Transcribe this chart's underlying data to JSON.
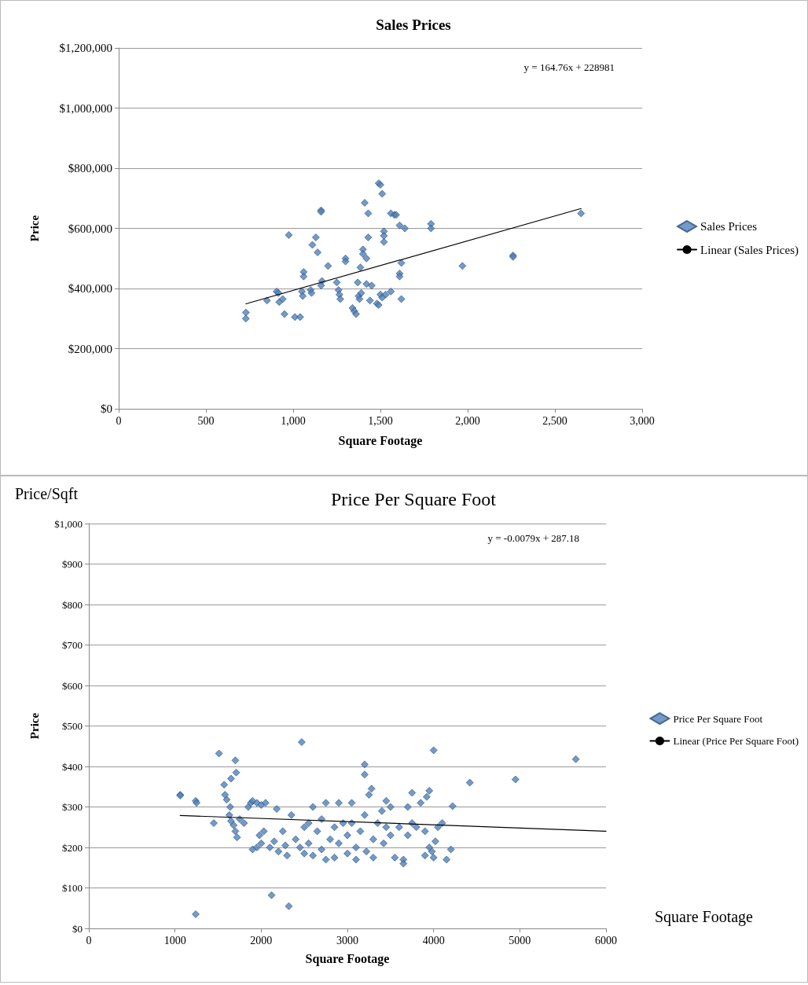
{
  "chart_data": [
    {
      "type": "scatter",
      "title": "Sales Prices",
      "xlabel": "Square Footage",
      "ylabel": "Price",
      "annotations": [
        "y = 164.76x + 228981"
      ],
      "xlim": [
        0,
        3000
      ],
      "xticks": [
        0,
        500,
        {
          "value": 1000,
          "label": "1,000"
        },
        {
          "value": 1500,
          "label": "1,500"
        },
        {
          "value": 2000,
          "label": "2,000"
        },
        {
          "value": 2500,
          "label": "2,500"
        },
        {
          "value": 3000,
          "label": "3,000"
        }
      ],
      "ylim": [
        0,
        1200000
      ],
      "yticks": [
        {
          "value": 0,
          "label": "$0"
        },
        {
          "value": 200000,
          "label": "$200,000"
        },
        {
          "value": 400000,
          "label": "$400,000"
        },
        {
          "value": 600000,
          "label": "$600,000"
        },
        {
          "value": 800000,
          "label": "$800,000"
        },
        {
          "value": 1000000,
          "label": "$1,000,000"
        },
        {
          "value": 1200000,
          "label": "$1,200,000"
        }
      ],
      "grid": "y",
      "legend": "right",
      "marker": "diamond",
      "series": [
        {
          "name": "Sales Prices",
          "color": "#4f81bd",
          "x": [
            729,
            729,
            850,
            905,
            915,
            920,
            940,
            950,
            975,
            1010,
            1040,
            1050,
            1055,
            1060,
            1060,
            1100,
            1105,
            1110,
            1130,
            1140,
            1160,
            1160,
            1165,
            1160,
            1200,
            1250,
            1260,
            1265,
            1270,
            1300,
            1300,
            1340,
            1350,
            1360,
            1370,
            1375,
            1380,
            1385,
            1390,
            1400,
            1400,
            1410,
            1420,
            1420,
            1430,
            1430,
            1440,
            1450,
            1480,
            1490,
            1490,
            1500,
            1510,
            1500,
            1510,
            1520,
            1520,
            1520,
            1530,
            1560,
            1560,
            1580,
            1590,
            1610,
            1620,
            1610,
            1610,
            1620,
            1640,
            1790,
            1790,
            1970,
            2260,
            2260,
            2650
          ],
          "values": [
            320000,
            300000,
            360000,
            390000,
            385000,
            355000,
            365000,
            315000,
            578000,
            305000,
            305000,
            390000,
            375000,
            455000,
            440000,
            395000,
            385000,
            545000,
            570000,
            520000,
            660000,
            655000,
            425000,
            410000,
            475000,
            420000,
            395000,
            380000,
            365000,
            500000,
            490000,
            335000,
            325000,
            315000,
            420000,
            375000,
            365000,
            470000,
            385000,
            530000,
            515000,
            685000,
            500000,
            415000,
            650000,
            570000,
            360000,
            410000,
            350000,
            345000,
            750000,
            745000,
            715000,
            380000,
            370000,
            590000,
            575000,
            555000,
            380000,
            390000,
            650000,
            645000,
            645000,
            610000,
            485000,
            450000,
            440000,
            365000,
            600000,
            615000,
            600000,
            475000,
            510000,
            505000,
            650000
          ]
        },
        {
          "name": "Linear (Sales Prices)",
          "type": "line",
          "marker": "none",
          "line_style": "solid",
          "color": "#000000",
          "x": [
            729,
            2650
          ],
          "values": [
            349000,
            666000
          ]
        }
      ]
    },
    {
      "type": "scatter",
      "title": "Price Per Square Foot",
      "xlabel": "Square Footage",
      "ylabel": "Price",
      "annotations": [
        "y = -0.0079x + 287.18",
        "Price/Sqft",
        "Square Footage"
      ],
      "xlim": [
        0,
        6000
      ],
      "xticks": [
        0,
        1000,
        2000,
        3000,
        4000,
        5000,
        6000
      ],
      "ylim": [
        0,
        1000
      ],
      "yticks": [
        {
          "value": 0,
          "label": "$0"
        },
        {
          "value": 100,
          "label": "$100"
        },
        {
          "value": 200,
          "label": "$200"
        },
        {
          "value": 300,
          "label": "$300"
        },
        {
          "value": 400,
          "label": "$400"
        },
        {
          "value": 500,
          "label": "$500"
        },
        {
          "value": 600,
          "label": "$600"
        },
        {
          "value": 700,
          "label": "$700"
        },
        {
          "value": 800,
          "label": "$800"
        },
        {
          "value": 900,
          "label": "$900"
        },
        {
          "value": 1000,
          "label": "$1,000"
        }
      ],
      "grid": "y",
      "legend": "right",
      "marker": "diamond",
      "series": [
        {
          "name": "Price Per Square Foot",
          "color": "#4f81bd",
          "x": [
            1060,
            1060,
            1240,
            1250,
            1240,
            1450,
            1510,
            1570,
            1600,
            1580,
            1650,
            1700,
            1710,
            1640,
            1630,
            1680,
            1700,
            1720,
            1650,
            1750,
            1800,
            1850,
            1880,
            1900,
            1950,
            2000,
            2050,
            1900,
            1950,
            1980,
            2000,
            2030,
            2100,
            2120,
            2150,
            2180,
            2200,
            2250,
            2280,
            2300,
            2320,
            2350,
            2400,
            2450,
            2470,
            2500,
            2500,
            2550,
            2550,
            2600,
            2600,
            2650,
            2700,
            2700,
            2750,
            2750,
            2800,
            2850,
            2850,
            2900,
            2900,
            2950,
            3000,
            3000,
            3050,
            3050,
            3100,
            3100,
            3150,
            3200,
            3200,
            3200,
            3220,
            3250,
            3280,
            3300,
            3300,
            3350,
            3400,
            3420,
            3450,
            3450,
            3500,
            3500,
            3550,
            3600,
            3650,
            3650,
            3700,
            3700,
            3750,
            3750,
            3800,
            3850,
            3900,
            3900,
            3920,
            3950,
            3950,
            3980,
            4000,
            4000,
            4020,
            4050,
            4100,
            4150,
            4200,
            4220,
            4420,
            4950,
            5650
          ],
          "values": [
            330,
            328,
            315,
            310,
            35,
            260,
            432,
            355,
            318,
            330,
            370,
            415,
            385,
            300,
            280,
            255,
            240,
            225,
            265,
            270,
            260,
            300,
            310,
            315,
            310,
            305,
            310,
            195,
            200,
            230,
            210,
            240,
            200,
            82,
            215,
            295,
            190,
            240,
            205,
            180,
            55,
            280,
            220,
            200,
            460,
            250,
            185,
            260,
            210,
            300,
            180,
            240,
            195,
            270,
            310,
            170,
            220,
            250,
            175,
            310,
            210,
            260,
            230,
            185,
            310,
            260,
            200,
            170,
            240,
            405,
            380,
            280,
            190,
            330,
            345,
            220,
            175,
            260,
            290,
            210,
            315,
            250,
            300,
            230,
            175,
            250,
            170,
            160,
            300,
            230,
            335,
            260,
            250,
            310,
            180,
            240,
            325,
            340,
            200,
            190,
            440,
            175,
            215,
            250,
            260,
            170,
            195,
            302,
            360,
            368,
            418
          ]
        },
        {
          "name": "Linear (Price Per Square Foot)",
          "type": "line",
          "marker": "none",
          "line_style": "solid",
          "color": "#000000",
          "x": [
            1060,
            6000
          ],
          "values": [
            279,
            240
          ]
        }
      ]
    }
  ]
}
